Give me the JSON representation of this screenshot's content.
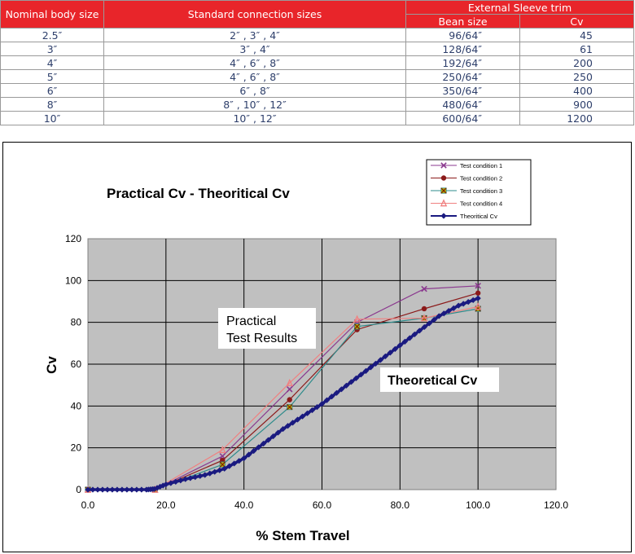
{
  "table": {
    "headers": {
      "body_size": "Nominal body size",
      "connection": "Standard connection sizes",
      "group": "External Sleeve trim",
      "bean": "Bean size",
      "cv": "Cv"
    },
    "rows": [
      {
        "body": "2.5″",
        "conn": "2″ , 3″ , 4″",
        "bean": "96/64″",
        "cv": "45"
      },
      {
        "body": "3″",
        "conn": "3″ , 4″",
        "bean": "128/64″",
        "cv": "61"
      },
      {
        "body": "4″",
        "conn": "4″ , 6″ , 8″",
        "bean": "192/64″",
        "cv": "200"
      },
      {
        "body": "5″",
        "conn": "4″ , 6″ , 8″",
        "bean": "250/64″",
        "cv": "250"
      },
      {
        "body": "6″",
        "conn": "6″ , 8″",
        "bean": "350/64″",
        "cv": "400"
      },
      {
        "body": "8″",
        "conn": "8″ , 10″ , 12″",
        "bean": "480/64″",
        "cv": "900"
      },
      {
        "body": "10″",
        "conn": "10″ , 12″",
        "bean": "600/64″",
        "cv": "1200"
      }
    ]
  },
  "chart_data": {
    "type": "line",
    "title": "Practical Cv - Theoritical Cv",
    "xlabel": "% Stem Travel",
    "ylabel": "Cv",
    "xlim": [
      0,
      120
    ],
    "ylim": [
      0,
      120
    ],
    "xticks": [
      "0.0",
      "20.0",
      "40.0",
      "60.0",
      "80.0",
      "100.0",
      "120.0"
    ],
    "yticks": [
      "0",
      "20",
      "40",
      "60",
      "80",
      "100",
      "120"
    ],
    "grid": true,
    "legend_position": "top-right",
    "annotations": {
      "practical": [
        "Practical",
        "Test Results"
      ],
      "theoretical": "Theoretical Cv"
    },
    "series": [
      {
        "name": "Test condition 1",
        "color": "#8b3a8f",
        "marker": "x",
        "x": [
          0,
          17.2,
          34.5,
          51.7,
          69.0,
          86.2,
          100
        ],
        "y": [
          0,
          0,
          16,
          48,
          80,
          96,
          97.5
        ]
      },
      {
        "name": "Test condition 2",
        "color": "#8b1a1a",
        "marker": "circle",
        "x": [
          0,
          17.2,
          34.5,
          51.7,
          69.0,
          86.2,
          100
        ],
        "y": [
          0,
          0,
          14,
          43,
          76.5,
          86.5,
          94
        ]
      },
      {
        "name": "Test condition 3",
        "color": "#2e8b8b",
        "marker": "x-square",
        "x": [
          0,
          17.2,
          34.5,
          51.7,
          69.0,
          86.2,
          100
        ],
        "y": [
          0,
          0,
          12,
          39.5,
          78,
          82,
          86.5
        ]
      },
      {
        "name": "Test condition 4",
        "color": "#f08080",
        "marker": "triangle",
        "x": [
          0,
          17.2,
          34.5,
          51.7,
          69.0,
          86.2,
          100
        ],
        "y": [
          0,
          0,
          19,
          51,
          81.5,
          82,
          87.5
        ]
      },
      {
        "name": "Theoritical Cv",
        "color": "#1a1a80",
        "marker": "diamond",
        "x": [
          0,
          5,
          10,
          15,
          17,
          20,
          25,
          30,
          35,
          40,
          45,
          50,
          55,
          60,
          65,
          70,
          75,
          80,
          85,
          90,
          95,
          100
        ],
        "y": [
          0,
          0,
          0,
          0,
          0.3,
          2.5,
          5,
          7,
          10,
          15,
          22,
          29,
          35,
          41,
          48,
          55,
          62,
          69,
          76,
          83,
          88,
          91.5
        ]
      }
    ]
  }
}
